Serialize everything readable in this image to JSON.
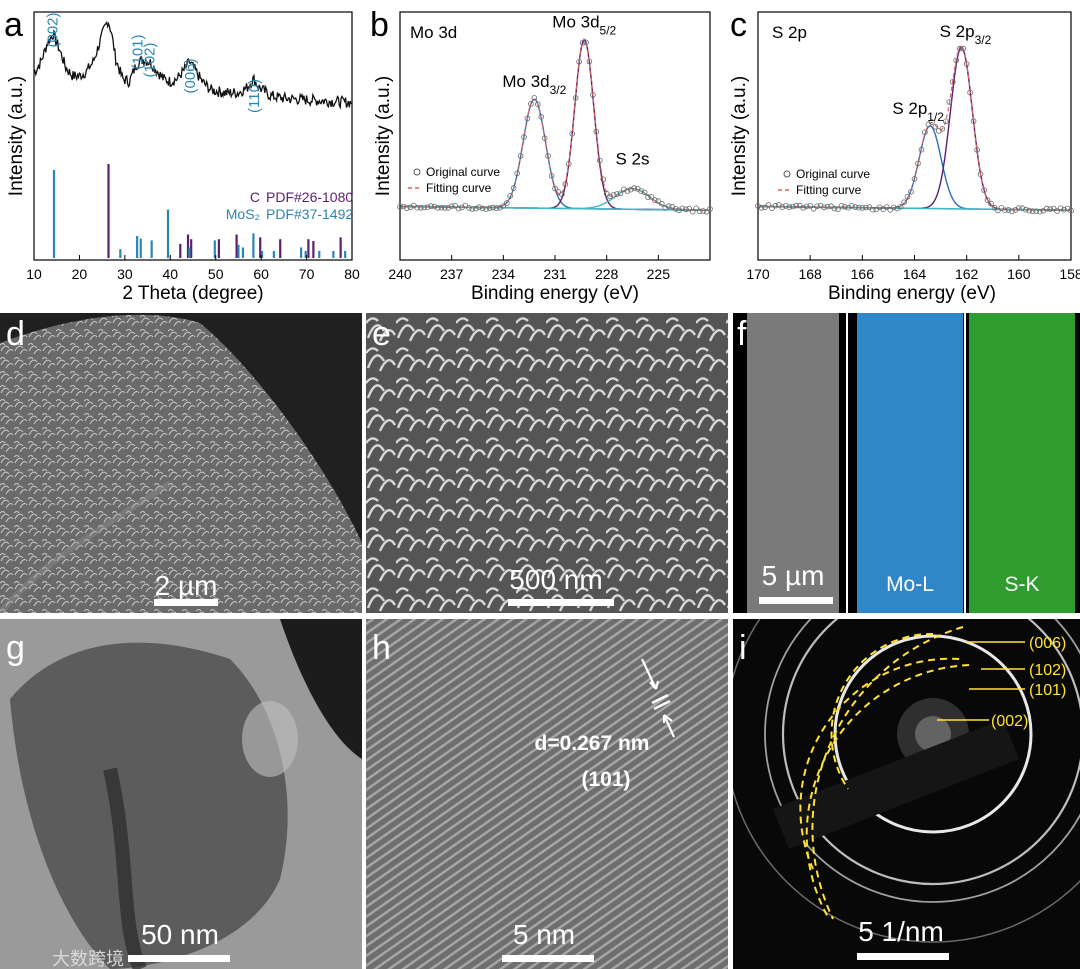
{
  "panel_letters": {
    "a": "a",
    "b": "b",
    "c": "c",
    "d": "d",
    "e": "e",
    "f": "f",
    "g": "g",
    "h": "h",
    "i": "i"
  },
  "colors": {
    "mos2": "#2b85b4",
    "carbon": "#5b1f6e",
    "fit_red": "#e06060",
    "envelope_cyan": "#41b8c0",
    "scale_white": "#ffffff",
    "ring_yellow": "#ffe233",
    "mo_map": "#2f86c8",
    "s_map": "#2f9c2f"
  },
  "chart_data": [
    {
      "panel": "a",
      "type": "line",
      "xlabel": "2 Theta (degree)",
      "ylabel": "Intensity (a.u.)",
      "xlim": [
        10,
        80
      ],
      "x_ticks": [
        10,
        20,
        30,
        40,
        50,
        60,
        70,
        80
      ],
      "peak_labels": [
        {
          "text": "(002)",
          "x": 14.1
        },
        {
          "text": "(101)",
          "x": 32.8
        },
        {
          "text": "(102)",
          "x": 35.4
        },
        {
          "text": "(006)",
          "x": 44.3
        },
        {
          "text": "(110)",
          "x": 58.4
        }
      ],
      "series": [
        {
          "name": "C",
          "ref": "PDF#26-1080",
          "color": "#5b1f6e",
          "sticks": [
            [
              26.4,
              100
            ],
            [
              42.2,
              15
            ],
            [
              43.9,
              25
            ],
            [
              44.6,
              20
            ],
            [
              50.7,
              20
            ],
            [
              54.6,
              25
            ],
            [
              59.8,
              22
            ],
            [
              64.2,
              20
            ],
            [
              70.4,
              20
            ],
            [
              71.5,
              18
            ],
            [
              77.5,
              22
            ]
          ]
        },
        {
          "name": "MoS₂",
          "ref": "PDF#37-1492",
          "color": "#2b85b4",
          "sticks": [
            [
              14.4,
              100
            ],
            [
              29.0,
              10
            ],
            [
              32.7,
              25
            ],
            [
              33.5,
              22
            ],
            [
              35.9,
              20
            ],
            [
              39.5,
              55
            ],
            [
              44.2,
              12
            ],
            [
              49.8,
              20
            ],
            [
              55.0,
              15
            ],
            [
              56.0,
              12
            ],
            [
              58.3,
              28
            ],
            [
              60.2,
              8
            ],
            [
              62.8,
              8
            ],
            [
              68.8,
              12
            ],
            [
              69.8,
              8
            ],
            [
              72.8,
              8
            ],
            [
              75.9,
              8
            ],
            [
              78.5,
              8
            ]
          ]
        }
      ],
      "pattern": [
        [
          10,
          62
        ],
        [
          11.5,
          70
        ],
        [
          13.0,
          84
        ],
        [
          14.2,
          90
        ],
        [
          15.5,
          80
        ],
        [
          17.0,
          66
        ],
        [
          18.5,
          60
        ],
        [
          20.0,
          60
        ],
        [
          21.5,
          63
        ],
        [
          23.0,
          70
        ],
        [
          24.5,
          84
        ],
        [
          25.5,
          94
        ],
        [
          26.3,
          100
        ],
        [
          27.0,
          92
        ],
        [
          28.0,
          72
        ],
        [
          29.5,
          58
        ],
        [
          31.0,
          56
        ],
        [
          32.5,
          68
        ],
        [
          34.0,
          72
        ],
        [
          35.5,
          70
        ],
        [
          37.0,
          64
        ],
        [
          38.5,
          58
        ],
        [
          40.0,
          56
        ],
        [
          41.5,
          58
        ],
        [
          43.0,
          64
        ],
        [
          44.2,
          70
        ],
        [
          45.5,
          64
        ],
        [
          47.0,
          56
        ],
        [
          49.0,
          50
        ],
        [
          52.0,
          48
        ],
        [
          55.0,
          48
        ],
        [
          57.0,
          52
        ],
        [
          58.3,
          58
        ],
        [
          59.5,
          52
        ],
        [
          62.0,
          46
        ],
        [
          65.0,
          44
        ],
        [
          70.0,
          43
        ],
        [
          75.0,
          42
        ],
        [
          80.0,
          41
        ]
      ]
    },
    {
      "panel": "b",
      "type": "line",
      "title": "Mo 3d",
      "xlabel": "Binding energy (eV)",
      "ylabel": "Intensity (a.u.)",
      "xlim": [
        240,
        222
      ],
      "x_ticks": [
        240,
        237,
        234,
        231,
        228,
        225
      ],
      "legend": [
        "Original curve",
        "Fitting curve"
      ],
      "peaks": [
        {
          "label_main": "Mo 3d",
          "label_sub": "3/2",
          "center": 232.2,
          "height": 0.58,
          "width": 0.65
        },
        {
          "label_main": "Mo 3d",
          "label_sub": "5/2",
          "center": 229.3,
          "height": 0.9,
          "width": 0.55
        },
        {
          "label_main": "S 2s",
          "label_sub": "",
          "center": 226.5,
          "height": 0.11,
          "width": 1.0
        }
      ]
    },
    {
      "panel": "c",
      "type": "line",
      "title": "S 2p",
      "xlabel": "Binding energy (eV)",
      "ylabel": "Intensity (a.u.)",
      "xlim": [
        170,
        158
      ],
      "x_ticks": [
        170,
        168,
        166,
        164,
        162,
        160,
        158
      ],
      "legend": [
        "Original curve",
        "Fitting curve"
      ],
      "peaks": [
        {
          "label_main": "S 2p",
          "label_sub": "1/2",
          "center": 163.4,
          "height": 0.44,
          "width": 0.42
        },
        {
          "label_main": "S 2p",
          "label_sub": "3/2",
          "center": 162.2,
          "height": 0.86,
          "width": 0.42
        }
      ]
    }
  ],
  "micrographs": {
    "d": {
      "scale_bar": "2 µm"
    },
    "e": {
      "scale_bar": "500 nm"
    },
    "f": {
      "scale_bar": "5 µm",
      "maps": [
        "Mo-L",
        "S-K"
      ]
    },
    "g": {
      "scale_bar": "50 nm"
    },
    "h": {
      "scale_bar": "5 nm",
      "d_spacing": "d=0.267 nm",
      "plane": "(101)"
    },
    "i": {
      "scale_bar": "5 1/nm",
      "rings": [
        "(006)",
        "(102)",
        "(101)",
        "(002)"
      ]
    }
  },
  "watermark": "大数跨境"
}
